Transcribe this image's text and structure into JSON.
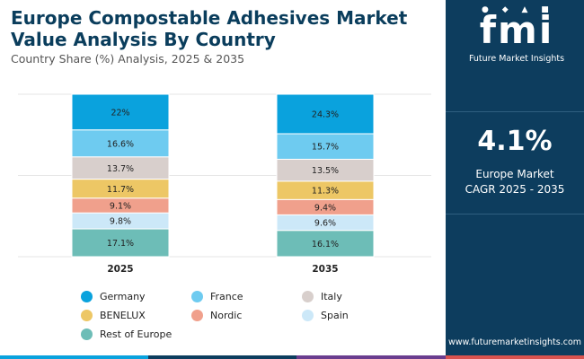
{
  "title_line1": "Europe Compostable Adhesives Market",
  "title_line2": "Value Analysis By Country",
  "subtitle": "Country Share (%) Analysis, 2025 & 2035",
  "chart_data": {
    "type": "bar",
    "stacked": true,
    "normalized": true,
    "categories": [
      "2025",
      "2035"
    ],
    "series": [
      {
        "name": "Germany",
        "values": [
          22,
          24.3
        ],
        "labels": [
          "22%",
          "24.3%"
        ],
        "color": "#0aa2dd"
      },
      {
        "name": "France",
        "values": [
          16.6,
          15.7
        ],
        "labels": [
          "16.6%",
          "15.7%"
        ],
        "color": "#6ecbf0"
      },
      {
        "name": "Italy",
        "values": [
          13.7,
          13.5
        ],
        "labels": [
          "13.7%",
          "13.5%"
        ],
        "color": "#d8cfcc"
      },
      {
        "name": "BENELUX",
        "values": [
          11.7,
          11.3
        ],
        "labels": [
          "11.7%",
          "11.3%"
        ],
        "color": "#edc765"
      },
      {
        "name": "Nordic",
        "values": [
          9.1,
          9.4
        ],
        "labels": [
          "9.1%",
          "9.4%"
        ],
        "color": "#f0a08c"
      },
      {
        "name": "Spain",
        "values": [
          9.8,
          9.6
        ],
        "labels": [
          "9.8%",
          "9.6%"
        ],
        "color": "#cce8f8"
      },
      {
        "name": "Rest of Europe",
        "values": [
          17.1,
          16.1
        ],
        "labels": [
          "17.1%",
          "16.1%"
        ],
        "color": "#6dbdb7"
      }
    ],
    "grid": true,
    "legend_position": "bottom"
  },
  "sidebar": {
    "logo_text": "fmi",
    "logo_name": "Future Market Insights",
    "cagr_value": "4.1%",
    "cagr_label_line1": "Europe Market",
    "cagr_label_line2": "CAGR 2025 - 2035",
    "website": "www.futuremarketinsights.com"
  },
  "colors": {
    "title": "#0a3d5c",
    "sidebar_bg": "#0d3d5e",
    "bottom_bar": [
      "#0aa2dd",
      "#0d3d5e",
      "#6a3d8f",
      "#d9534f"
    ]
  }
}
